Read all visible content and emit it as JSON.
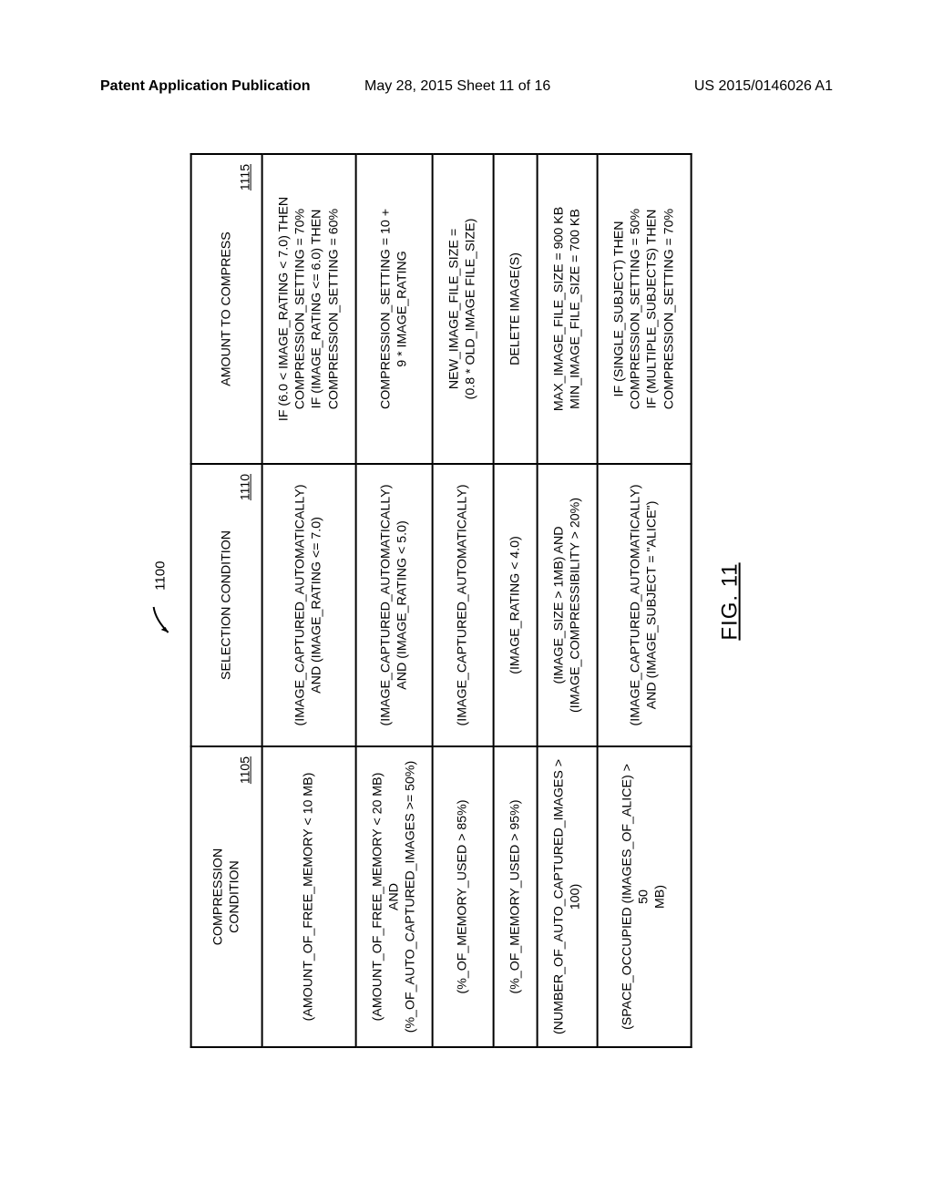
{
  "header": {
    "left": "Patent Application Publication",
    "center": "May 28, 2015  Sheet 11 of 16",
    "right": "US 2015/0146026 A1"
  },
  "figure": {
    "reference_number": "1100",
    "caption": "FIG. 11",
    "columns": [
      {
        "title": "COMPRESSION\nCONDITION",
        "ref": "1105"
      },
      {
        "title": "SELECTION CONDITION",
        "ref": "1110"
      },
      {
        "title": "AMOUNT TO COMPRESS",
        "ref": "1115"
      }
    ],
    "rows": [
      {
        "c1": "(AMOUNT_OF_FREE_MEMORY < 10 MB)",
        "c2": "(IMAGE_CAPTURED_AUTOMATICALLY)\nAND (IMAGE_RATING <= 7.0)",
        "c3": "IF (6.0 < IMAGE_RATING < 7.0) THEN\nCOMPRESSION_SETTING = 70%\nIF (IMAGE_RATING <= 6.0) THEN\nCOMPRESSION_SETTING = 60%"
      },
      {
        "c1": "(AMOUNT_OF_FREE_MEMORY < 20 MB) AND\n(%_OF_AUTO_CAPTURED_IMAGES >= 50%)",
        "c2": "(IMAGE_CAPTURED_AUTOMATICALLY)\nAND (IMAGE_RATING < 5.0)",
        "c3": "COMPRESSION_SETTING = 10 +\n9 * IMAGE_RATING"
      },
      {
        "c1": "(%_OF_MEMORY_USED > 85%)",
        "c2": "(IMAGE_CAPTURED_AUTOMATICALLY)",
        "c3": "NEW_IMAGE_FILE_SIZE =\n(0.8 * OLD_IMAGE FILE_SIZE)"
      },
      {
        "c1": "(%_OF_MEMORY_USED > 95%)",
        "c2": "(IMAGE_RATING < 4.0)",
        "c3": "DELETE IMAGE(S)"
      },
      {
        "c1": "(NUMBER_OF_AUTO_CAPTURED_IMAGES >\n100)",
        "c2": "(IMAGE_SIZE > 1MB) AND\n(IMAGE_COMPRESSIBILITY > 20%)",
        "c3": "MAX_IMAGE_FILE_SIZE = 900 KB\nMIN_IMAGE_FILE_SIZE = 700 KB"
      },
      {
        "c1": "(SPACE_OCCUPIED (IMAGES_OF_ALICE) > 50\nMB)",
        "c2": "(IMAGE_CAPTURED_AUTOMATICALLY)\nAND (IMAGE_SUBJECT = \"ALICE\")",
        "c3": "IF (SINGLE_SUBJECT) THEN\nCOMPRESSION_SETTING = 50%\nIF (MULTIPLE_SUBJECTS) THEN\nCOMPRESSION_SETTING = 70%"
      }
    ]
  }
}
